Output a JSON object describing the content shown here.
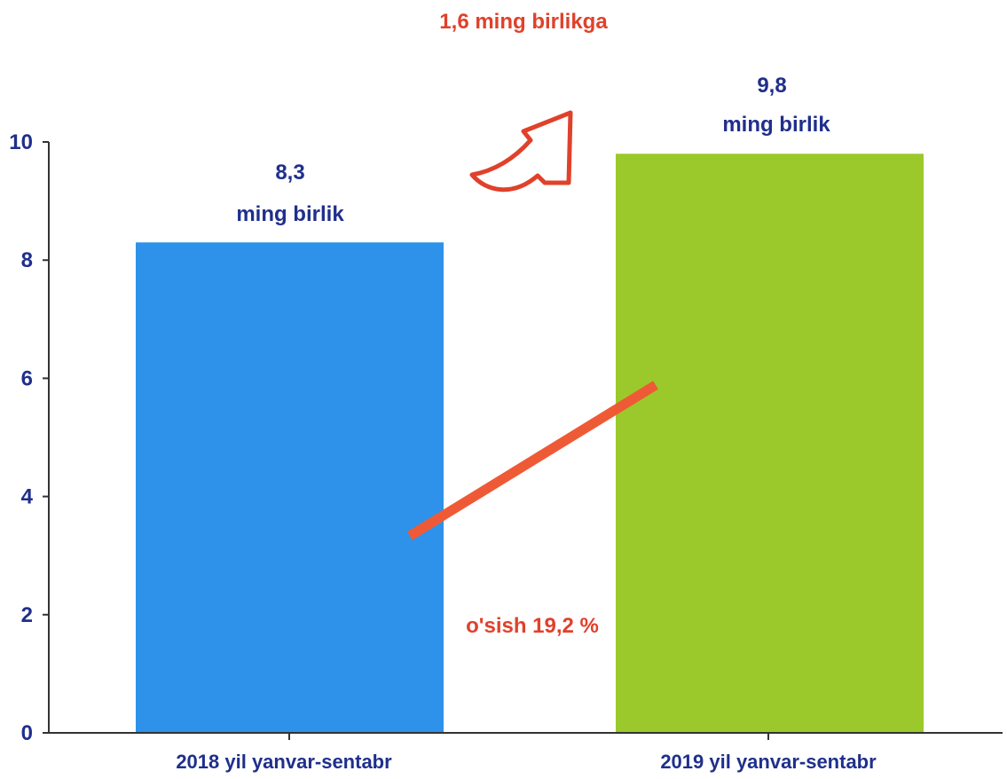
{
  "colors": {
    "text_navy": "#1f2f8c",
    "accent_red": "#e0412b",
    "trend_line": "#ef5a36",
    "axis": "#333333"
  },
  "chart_data": {
    "type": "bar",
    "categories": [
      "2018 yil yanvar-sentabr",
      "2019 yil yanvar-sentabr"
    ],
    "values": [
      8.3,
      9.8
    ],
    "bar_colors": [
      "#2e92ea",
      "#9bc92b"
    ],
    "data_labels": [
      {
        "value": "8,3",
        "unit": "ming birlik"
      },
      {
        "value": "9,8",
        "unit": "ming birlik"
      }
    ],
    "y_ticks": [
      "0",
      "2",
      "4",
      "6",
      "8",
      "10"
    ],
    "ylim": [
      0,
      10
    ],
    "grid": false,
    "legend": "none",
    "annotations": {
      "increase_label": "1,6 ming birlikga",
      "growth_label": "o'sish 19,2 %"
    },
    "icons": [
      "curved-up-arrow-icon",
      "trend-line"
    ]
  }
}
